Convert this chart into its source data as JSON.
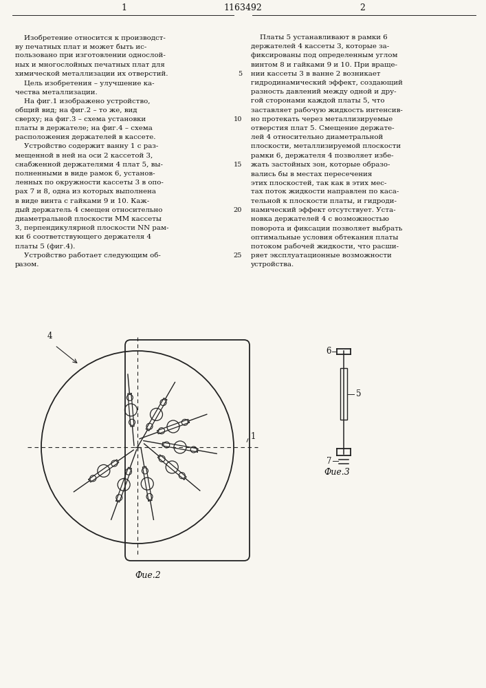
{
  "page_title": "1163492",
  "col1_number": "1",
  "col2_number": "2",
  "left_col_text": [
    "    Изобретение относится к производст-",
    "ву печатных плат и может быть ис-",
    "пользовано при изготовлении однослой-",
    "ных и многослойных печатных плат для",
    "химической металлизации их отверстий.",
    "    Цель изобретения – улучшение ка-",
    "чества металлизации.",
    "    На фиг.1 изображено устройство,",
    "общий вид; на фиг.2 – то же, вид",
    "сверху; на фиг.3 – схема установки",
    "платы в держателе; на фиг.4 – схема",
    "расположения держателей в кассете.",
    "    Устройство содержит ванну 1 с раз-",
    "мещенной в ней на оси 2 кассетой 3,",
    "снабженной держателями 4 плат 5, вы-",
    "полненными в виде рамок 6, установ-",
    "ленных по окружности кассеты 3 в опо-",
    "рах 7 и 8, одна из которых выполнена",
    "в виде винта с гайками 9 и 10. Каж-",
    "дый держатель 4 смещен относительно",
    "диаметральной плоскости MM кассеты",
    "3, перпендикулярной плоскости NN рам-",
    "ки 6 соответствующего держателя 4",
    "платы 5 (фиг.4).",
    "    Устройство работает следующим об-",
    "разом."
  ],
  "right_col_text": [
    "    Платы 5 устанавливают в рамки 6",
    "держателей 4 кассеты 3, которые за-",
    "фиксированы под определенным углом",
    "винтом 8 и гайками 9 и 10. При враще-",
    "нии кассеты 3 в ванне 2 возникает",
    "гидродинамический эффект, создающий",
    "разность давлений между одной и дру-",
    "гой сторонами каждой платы 5, что",
    "заставляет рабочую жидкость интенсив-",
    "но протекать через металлизируемые",
    "отверстия плат 5. Смещение держате-",
    "лей 4 относительно диаметральной",
    "плоскости, металлизируемой плоскости",
    "рамки 6, держателя 4 позволяет избе-",
    "жать застойных зон, которые образо-",
    "вались бы в местах пересечения",
    "этих плоскостей, так как в этих мес-",
    "тах поток жидкости направлен по каса-",
    "тельной к плоскости платы, и гидроди-",
    "намический эффект отсутствует. Уста-",
    "новка держателей 4 с возможностью",
    "поворота и фиксации позволяет выбрать",
    "оптимальные условия обтекания платы",
    "потоком рабочей жидкости, что расши-",
    "ряет эксплуатационные возможности",
    "устройства."
  ],
  "line_numbers_left": [
    5,
    10,
    15,
    20,
    25
  ],
  "line_numbers_positions": [
    4,
    9,
    14,
    19,
    24
  ],
  "fig2_caption": "Фue.2",
  "fig3_caption": "Фue.3",
  "background_color": "#f8f6f0",
  "text_color": "#111111",
  "line_color": "#222222"
}
